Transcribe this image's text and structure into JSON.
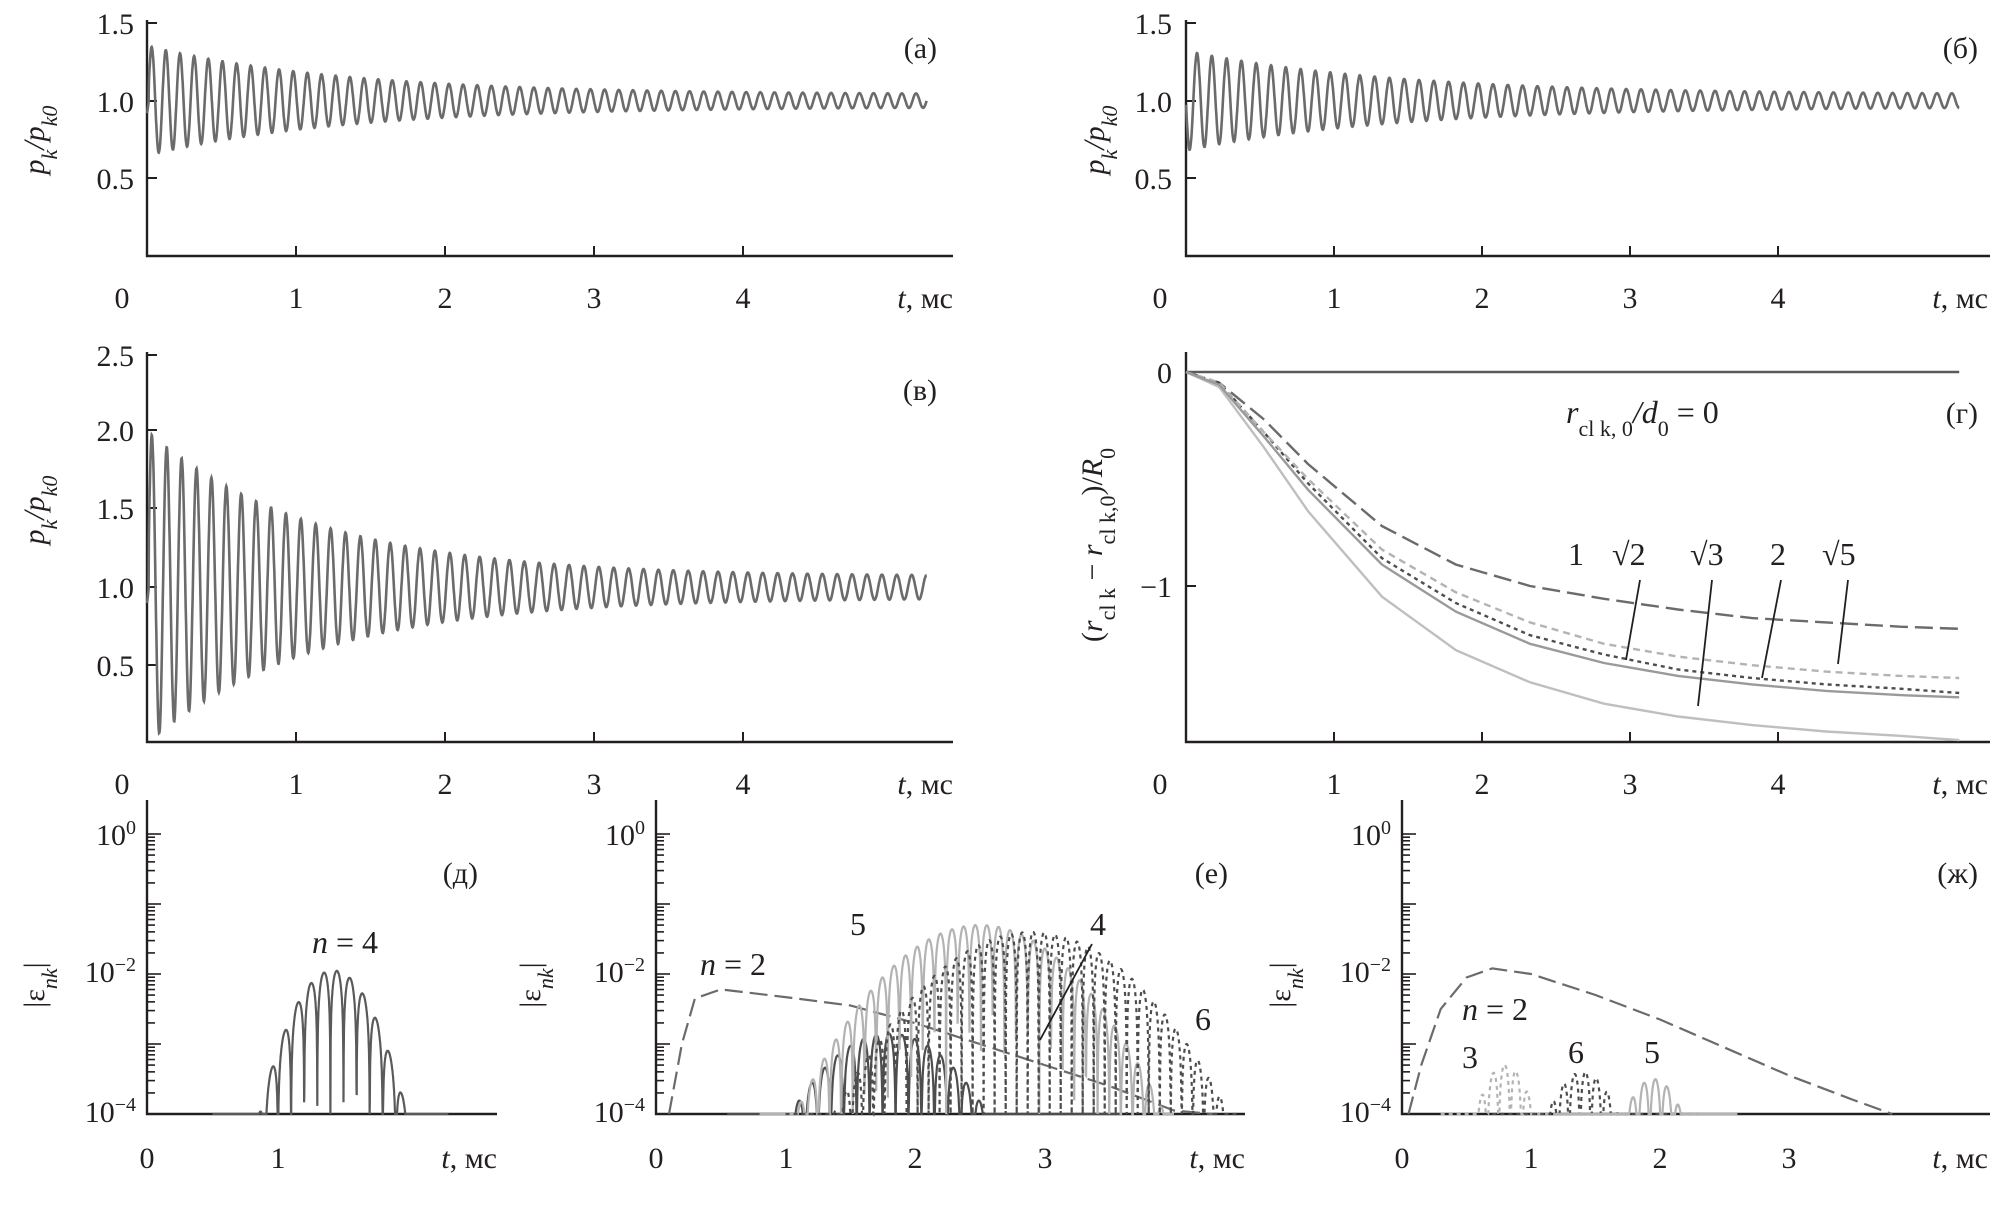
{
  "chart_data": [
    {
      "id": "a",
      "type": "line",
      "panel_label": "(а)",
      "xlabel_var": "t",
      "xlabel_unit": ", мс",
      "ylabel": "p_k/p_k0",
      "xlim": [
        0,
        5.4
      ],
      "ylim": [
        0,
        1.5
      ],
      "x_ticks": [
        "0",
        "1",
        "2",
        "3",
        "4"
      ],
      "y_ticks": [
        "0.5",
        "1.0",
        "1.5"
      ],
      "series": [
        {
          "kind": "damped_oscillation",
          "color": "#6b6b6b",
          "x_start": 0.0,
          "x_end": 5.4,
          "base": 1.0,
          "dip_x": 0.1,
          "dip_y": 0.6,
          "amp_start": 0.35,
          "amp_end": 0.04,
          "decay": 0.75,
          "period": 0.095
        }
      ]
    },
    {
      "id": "b",
      "type": "line",
      "panel_label": "(б)",
      "xlabel_var": "t",
      "xlabel_unit": ", мс",
      "ylabel": "p_k/p_k0",
      "xlim": [
        0,
        5.4
      ],
      "ylim": [
        0,
        1.5
      ],
      "x_ticks": [
        "0",
        "1",
        "2",
        "3",
        "4"
      ],
      "y_ticks": [
        "0.5",
        "1.0",
        "1.5"
      ],
      "series": [
        {
          "kind": "damped_oscillation",
          "color": "#6b6b6b",
          "x_start": 0.0,
          "x_end": 5.4,
          "base": 1.0,
          "dip_x": 0.05,
          "dip_y": 0.8,
          "amp_start": 0.33,
          "amp_end": 0.04,
          "decay": 0.7,
          "period": 0.1
        }
      ]
    },
    {
      "id": "v",
      "type": "line",
      "panel_label": "(в)",
      "xlabel_var": "t",
      "xlabel_unit": ", мс",
      "ylabel": "p_k/p_k0",
      "xlim": [
        0,
        5.4
      ],
      "ylim": [
        0,
        2.5
      ],
      "x_ticks": [
        "0",
        "1",
        "2",
        "3",
        "4"
      ],
      "y_ticks": [
        "0.5",
        "1.0",
        "1.5",
        "2.0",
        "2.5"
      ],
      "series": [
        {
          "kind": "damped_oscillation",
          "color": "#6b6b6b",
          "x_start": 0.0,
          "x_end": 5.4,
          "base": 1.0,
          "dip_x": 0.1,
          "dip_y": 0.5,
          "amp_start": 1.0,
          "amp_end": 0.07,
          "decay": 0.9,
          "period": 0.1
        }
      ]
    },
    {
      "id": "g",
      "type": "line",
      "panel_label": "(г)",
      "xlabel_var": "t",
      "xlabel_unit": ", мс",
      "ylabel": "(r_cl k − r_cl k,0)/R_0",
      "xlim": [
        0,
        5.4
      ],
      "ylim": [
        -1.75,
        0.05
      ],
      "x_ticks": [
        "0",
        "1",
        "2",
        "3",
        "4"
      ],
      "y_ticks": [
        "0",
        "−1"
      ],
      "annotation_text": "r_cl k, 0/d_0 = 0",
      "curve_labels": [
        "1",
        "√2",
        "√3",
        "2",
        "√5"
      ],
      "series": [
        {
          "name": "1",
          "color": "#5a5a5a",
          "dash": "",
          "points": [
            [
              0,
              0
            ],
            [
              5.4,
              0
            ]
          ]
        },
        {
          "name": "√2",
          "color": "#6b6b6b",
          "dash": "long",
          "points": [
            [
              0,
              0
            ],
            [
              0.15,
              0
            ],
            [
              0.4,
              -0.05
            ],
            [
              0.7,
              -0.22
            ],
            [
              1.0,
              -0.43
            ],
            [
              1.5,
              -0.72
            ],
            [
              2.0,
              -0.9
            ],
            [
              2.5,
              -1.0
            ],
            [
              3.0,
              -1.06
            ],
            [
              3.5,
              -1.11
            ],
            [
              4.0,
              -1.15
            ],
            [
              4.5,
              -1.17
            ],
            [
              5.0,
              -1.19
            ],
            [
              5.4,
              -1.2
            ]
          ]
        },
        {
          "name": "√3",
          "color": "#4d4d4d",
          "dash": "fine",
          "points": [
            [
              0,
              0
            ],
            [
              0.15,
              0
            ],
            [
              0.4,
              -0.05
            ],
            [
              0.7,
              -0.28
            ],
            [
              1.0,
              -0.52
            ],
            [
              1.5,
              -0.87
            ],
            [
              2.0,
              -1.08
            ],
            [
              2.5,
              -1.23
            ],
            [
              3.0,
              -1.32
            ],
            [
              3.5,
              -1.39
            ],
            [
              4.0,
              -1.43
            ],
            [
              4.5,
              -1.46
            ],
            [
              5.0,
              -1.48
            ],
            [
              5.4,
              -1.5
            ]
          ]
        },
        {
          "name": "2",
          "color": "#bfbfbf",
          "dash": "",
          "points": [
            [
              0,
              0
            ],
            [
              0.15,
              0
            ],
            [
              0.4,
              -0.07
            ],
            [
              0.7,
              -0.35
            ],
            [
              1.0,
              -0.65
            ],
            [
              1.5,
              -1.05
            ],
            [
              2.0,
              -1.3
            ],
            [
              2.5,
              -1.45
            ],
            [
              3.0,
              -1.55
            ],
            [
              3.5,
              -1.61
            ],
            [
              4.0,
              -1.65
            ],
            [
              4.5,
              -1.68
            ],
            [
              5.0,
              -1.7
            ],
            [
              5.4,
              -1.72
            ]
          ]
        },
        {
          "name": "√5",
          "color": "#b3b3b3",
          "dash": "short",
          "points": [
            [
              0,
              0
            ],
            [
              0.15,
              0
            ],
            [
              0.4,
              -0.05
            ],
            [
              0.7,
              -0.28
            ],
            [
              1.0,
              -0.5
            ],
            [
              1.5,
              -0.83
            ],
            [
              2.0,
              -1.03
            ],
            [
              2.5,
              -1.17
            ],
            [
              3.0,
              -1.27
            ],
            [
              3.5,
              -1.33
            ],
            [
              4.0,
              -1.37
            ],
            [
              4.5,
              -1.4
            ],
            [
              5.0,
              -1.42
            ],
            [
              5.4,
              -1.43
            ]
          ]
        },
        {
          "name": "√5-b",
          "color": "#9a9a9a",
          "dash": "",
          "points": [
            [
              0,
              0
            ],
            [
              0.15,
              0
            ],
            [
              0.4,
              -0.06
            ],
            [
              0.7,
              -0.3
            ],
            [
              1.0,
              -0.55
            ],
            [
              1.5,
              -0.9
            ],
            [
              2.0,
              -1.12
            ],
            [
              2.5,
              -1.27
            ],
            [
              3.0,
              -1.36
            ],
            [
              3.5,
              -1.42
            ],
            [
              4.0,
              -1.46
            ],
            [
              4.5,
              -1.49
            ],
            [
              5.0,
              -1.51
            ],
            [
              5.4,
              -1.52
            ]
          ]
        }
      ]
    },
    {
      "id": "d",
      "type": "line",
      "scale": "log",
      "panel_label": "(д)",
      "xlabel_var": "t",
      "xlabel_unit": ", мс",
      "ylabel": "|ε_nk|",
      "xlim": [
        0,
        2.3
      ],
      "ylim_exp": [
        -4,
        0
      ],
      "x_ticks": [
        "0",
        "1"
      ],
      "y_ticks_exp": [
        "0",
        "−2",
        "−4"
      ],
      "annotations": [
        "n = 4"
      ],
      "series": [
        {
          "name": "n = 4",
          "color": "#5a5a5a",
          "dash": "",
          "kind": "log_bursts",
          "x_start": 0.5,
          "x_end": 2.3,
          "peak_x": 1.42,
          "peak_log": -1.95,
          "spread": 0.5,
          "period": 0.1
        }
      ]
    },
    {
      "id": "e",
      "type": "line",
      "scale": "log",
      "panel_label": "(е)",
      "xlabel_var": "t",
      "xlabel_unit": ", мс",
      "ylabel": "|ε_nk|",
      "xlim": [
        0,
        4.5
      ],
      "ylim_exp": [
        -4,
        0
      ],
      "x_ticks": [
        "0",
        "1",
        "2",
        "3"
      ],
      "y_ticks_exp": [
        "0",
        "−2",
        "−4"
      ],
      "annotations": [
        "n = 2",
        "5",
        "4",
        "6"
      ],
      "series": [
        {
          "name": "n = 2",
          "color": "#6b6b6b",
          "dash": "long",
          "points": [
            [
              0.1,
              -4
            ],
            [
              0.2,
              -3.0
            ],
            [
              0.3,
              -2.35
            ],
            [
              0.5,
              -2.22
            ],
            [
              1.0,
              -2.33
            ],
            [
              1.5,
              -2.45
            ],
            [
              2.0,
              -2.7
            ],
            [
              2.5,
              -3.0
            ],
            [
              3.0,
              -3.3
            ],
            [
              3.5,
              -3.6
            ],
            [
              4.0,
              -3.95
            ],
            [
              4.3,
              -4
            ]
          ]
        },
        {
          "name": "4",
          "color": "#4d4d4d",
          "dash": "",
          "kind": "log_bursts",
          "x_start": 0.55,
          "x_end": 3.6,
          "peak_x": 1.8,
          "peak_log": -2.85,
          "spread": 0.9,
          "period": 0.1
        },
        {
          "name": "5",
          "color": "#b3b3b3",
          "dash": "",
          "kind": "log_bursts",
          "x_start": 0.8,
          "x_end": 4.0,
          "peak_x": 2.5,
          "peak_log": -1.3,
          "spread": 1.1,
          "period": 0.09
        },
        {
          "name": "6",
          "color": "#4d4d4d",
          "dash": "fine",
          "kind": "log_bursts",
          "x_start": 1.0,
          "x_end": 4.5,
          "peak_x": 2.9,
          "peak_log": -1.4,
          "spread": 1.2,
          "period": 0.085
        }
      ]
    },
    {
      "id": "zh",
      "type": "line",
      "scale": "log",
      "panel_label": "(ж)",
      "xlabel_var": "t",
      "xlabel_unit": ", мс",
      "ylabel": "|ε_nk|",
      "xlim": [
        0,
        4.5
      ],
      "ylim_exp": [
        -4,
        0
      ],
      "x_ticks": [
        "0",
        "1",
        "2",
        "3"
      ],
      "y_ticks_exp": [
        "0",
        "−2",
        "−4"
      ],
      "annotations": [
        "n = 2",
        "3",
        "6",
        "5"
      ],
      "series": [
        {
          "name": "n = 2",
          "color": "#6b6b6b",
          "dash": "long",
          "points": [
            [
              0.05,
              -4
            ],
            [
              0.15,
              -3.3
            ],
            [
              0.3,
              -2.5
            ],
            [
              0.5,
              -2.05
            ],
            [
              0.7,
              -1.92
            ],
            [
              1.0,
              -2.0
            ],
            [
              1.5,
              -2.3
            ],
            [
              2.0,
              -2.65
            ],
            [
              2.5,
              -3.05
            ],
            [
              3.0,
              -3.45
            ],
            [
              3.5,
              -3.8
            ],
            [
              3.8,
              -4
            ]
          ]
        },
        {
          "name": "3",
          "color": "#b3b3b3",
          "dash": "fine",
          "kind": "log_bursts",
          "x_start": 0.3,
          "x_end": 1.5,
          "peak_x": 0.8,
          "peak_log": -3.3,
          "spread": 0.35,
          "period": 0.09
        },
        {
          "name": "6",
          "color": "#4d4d4d",
          "dash": "fine",
          "kind": "log_bursts",
          "x_start": 0.7,
          "x_end": 2.3,
          "peak_x": 1.4,
          "peak_log": -3.4,
          "spread": 0.45,
          "period": 0.085
        },
        {
          "name": "5",
          "color": "#b3b3b3",
          "dash": "",
          "kind": "log_bursts",
          "x_start": 1.2,
          "x_end": 2.6,
          "peak_x": 1.95,
          "peak_log": -3.5,
          "spread": 0.4,
          "period": 0.09
        }
      ]
    }
  ]
}
